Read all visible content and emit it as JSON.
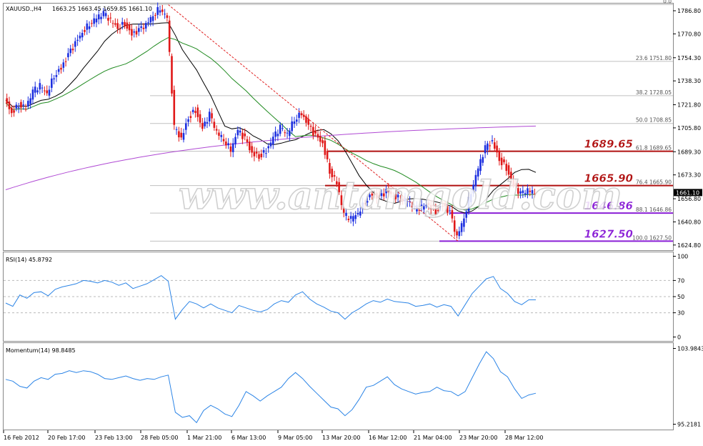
{
  "header": {
    "symbol": "XAUUSD.,H4",
    "ohlc": "1663.25 1663.45 1659.85 1661.10"
  },
  "watermark": "www.antamgold.com",
  "colors": {
    "bull": "#1c2fe0",
    "bear": "#e01818",
    "ma_short": "#000000",
    "ma_mid": "#1f8a1f",
    "ma_long": "#b04ad4",
    "red_level": "#b01010",
    "purple_level": "#8a1fd6",
    "indicator": "#2b84e6",
    "grid": "#c0c0c0"
  },
  "chart_data": [
    {
      "type": "candlestick",
      "name": "main",
      "price_axis_labels": [
        "1786.80",
        "1770.80",
        "1754.30",
        "1738.30",
        "1721.80",
        "1705.80",
        "1689.30",
        "1673.30",
        "1656.80",
        "1640.80",
        "1624.80"
      ],
      "current_price": "1661.10",
      "ylim": [
        1621,
        1792
      ],
      "fibonacci": [
        {
          "label": "0.0",
          "price": 1791.0
        },
        {
          "label": "23.6 1751.80",
          "price": 1751.8
        },
        {
          "label": "38.2 1728.05",
          "price": 1728.05
        },
        {
          "label": "50.0 1708.85",
          "price": 1708.85
        },
        {
          "label": "61.8 1689.65",
          "price": 1689.65
        },
        {
          "label": "76.4 1665.90",
          "price": 1665.9
        },
        {
          "label": "88.1 1646.86",
          "price": 1646.86
        },
        {
          "label": "100.0 1627.50",
          "price": 1627.5
        }
      ],
      "levels": [
        {
          "label": "1689.65",
          "price": 1689.65,
          "color": "red"
        },
        {
          "label": "1665.90",
          "price": 1665.9,
          "color": "red"
        },
        {
          "label": "1646.86",
          "price": 1646.86,
          "color": "purple"
        },
        {
          "label": "1627.50",
          "price": 1627.5,
          "color": "purple"
        }
      ],
      "x_labels": [
        "16 Feb 2012",
        "20 Feb 17:00",
        "23 Feb 13:00",
        "28 Feb 05:00",
        "1 Mar 21:00",
        "6 Mar 13:00",
        "9 Mar 05:00",
        "13 Mar 20:00",
        "16 Mar 12:00",
        "21 Mar 04:00",
        "23 Mar 20:00",
        "28 Mar 12:00"
      ],
      "close_path": [
        1725,
        1716,
        1722,
        1720,
        1731,
        1735,
        1730,
        1742,
        1747,
        1756,
        1764,
        1772,
        1778,
        1782,
        1785,
        1780,
        1775,
        1778,
        1770,
        1773,
        1777,
        1784,
        1789,
        1782,
        1706,
        1698,
        1713,
        1718,
        1705,
        1715,
        1703,
        1698,
        1691,
        1704,
        1698,
        1688,
        1686,
        1690,
        1699,
        1706,
        1702,
        1712,
        1716,
        1707,
        1700,
        1695,
        1676,
        1668,
        1646,
        1643,
        1647,
        1655,
        1660,
        1657,
        1662,
        1659,
        1657,
        1656,
        1650,
        1651,
        1653,
        1648,
        1652,
        1647,
        1630,
        1644,
        1662,
        1678,
        1692,
        1696,
        1684,
        1678,
        1666,
        1660,
        1663,
        1661
      ]
    },
    {
      "type": "line",
      "name": "RSI(14)",
      "header": "RSI(14) 45.8792",
      "ylim": [
        0,
        100
      ],
      "levels": [
        "100",
        "70",
        "50",
        "30",
        "0"
      ],
      "values": [
        42,
        38,
        52,
        48,
        55,
        56,
        51,
        59,
        62,
        64,
        66,
        70,
        69,
        67,
        70,
        68,
        64,
        67,
        60,
        63,
        66,
        71,
        76,
        69,
        22,
        34,
        44,
        41,
        36,
        41,
        36,
        33,
        30,
        39,
        36,
        33,
        31,
        34,
        41,
        45,
        43,
        52,
        56,
        47,
        41,
        37,
        32,
        30,
        22,
        30,
        35,
        41,
        45,
        43,
        47,
        44,
        43,
        42,
        38,
        39,
        41,
        37,
        40,
        38,
        26,
        40,
        54,
        63,
        72,
        75,
        60,
        54,
        44,
        40,
        46,
        46
      ]
    },
    {
      "type": "line",
      "name": "Momentum(14)",
      "header": "Momentum(14) 98.8485",
      "ylim": [
        95.2181,
        103.9843
      ],
      "levels": [
        "103.9843",
        "95.2181"
      ],
      "values": [
        100.4,
        100.2,
        99.6,
        99.4,
        100.2,
        100.6,
        100.4,
        101.0,
        101.1,
        101.4,
        101.2,
        101.4,
        101.3,
        101.0,
        100.5,
        100.4,
        100.6,
        100.8,
        100.5,
        100.3,
        100.5,
        100.4,
        100.7,
        100.9,
        96.6,
        96.0,
        96.2,
        95.4,
        96.8,
        97.4,
        97.0,
        96.4,
        96.1,
        97.4,
        99.0,
        98.5,
        97.9,
        98.5,
        99.0,
        99.5,
        100.5,
        101.2,
        100.5,
        99.6,
        98.8,
        98.0,
        97.2,
        97.0,
        96.2,
        96.9,
        98.1,
        99.5,
        99.7,
        100.2,
        100.7,
        99.8,
        99.3,
        99.0,
        98.7,
        98.9,
        99.0,
        99.5,
        99.1,
        99.0,
        98.5,
        99.0,
        100.6,
        102.2,
        103.6,
        102.8,
        101.3,
        100.7,
        99.3,
        98.2,
        98.6,
        98.8
      ]
    }
  ]
}
